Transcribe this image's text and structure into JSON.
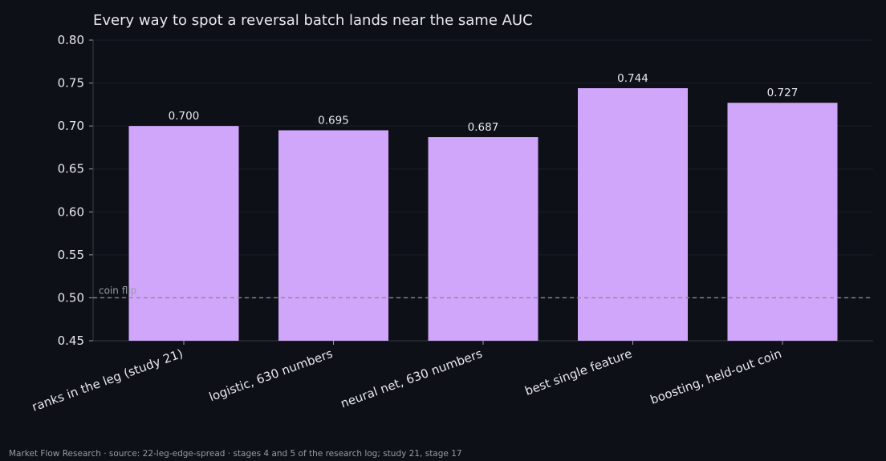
{
  "chart_data": {
    "type": "bar",
    "title": "Every way to spot a reversal batch lands near the same AUC",
    "categories": [
      "ranks in the leg (study 21)",
      "logistic, 630 numbers",
      "neural net, 630 numbers",
      "best single feature",
      "boosting, held-out coin"
    ],
    "values": [
      0.7,
      0.695,
      0.687,
      0.744,
      0.727
    ],
    "value_labels": [
      "0.700",
      "0.695",
      "0.687",
      "0.744",
      "0.727"
    ],
    "ylim": [
      0.45,
      0.8
    ],
    "yticks": [
      "0.45",
      "0.50",
      "0.55",
      "0.60",
      "0.65",
      "0.70",
      "0.75",
      "0.80"
    ],
    "xlabel": "",
    "ylabel": "",
    "grid": true,
    "reference_line": {
      "value": 0.5,
      "label": "coin flip"
    },
    "colors": {
      "bar": "#d0a6fb",
      "background": "#0d1017",
      "text": "#e8e8ee",
      "muted": "#9a9aa2",
      "reference": "#8a8a92"
    }
  },
  "footer": "Market Flow Research · source: 22-leg-edge-spread · stages 4 and 5 of the research log; study 21, stage 17"
}
